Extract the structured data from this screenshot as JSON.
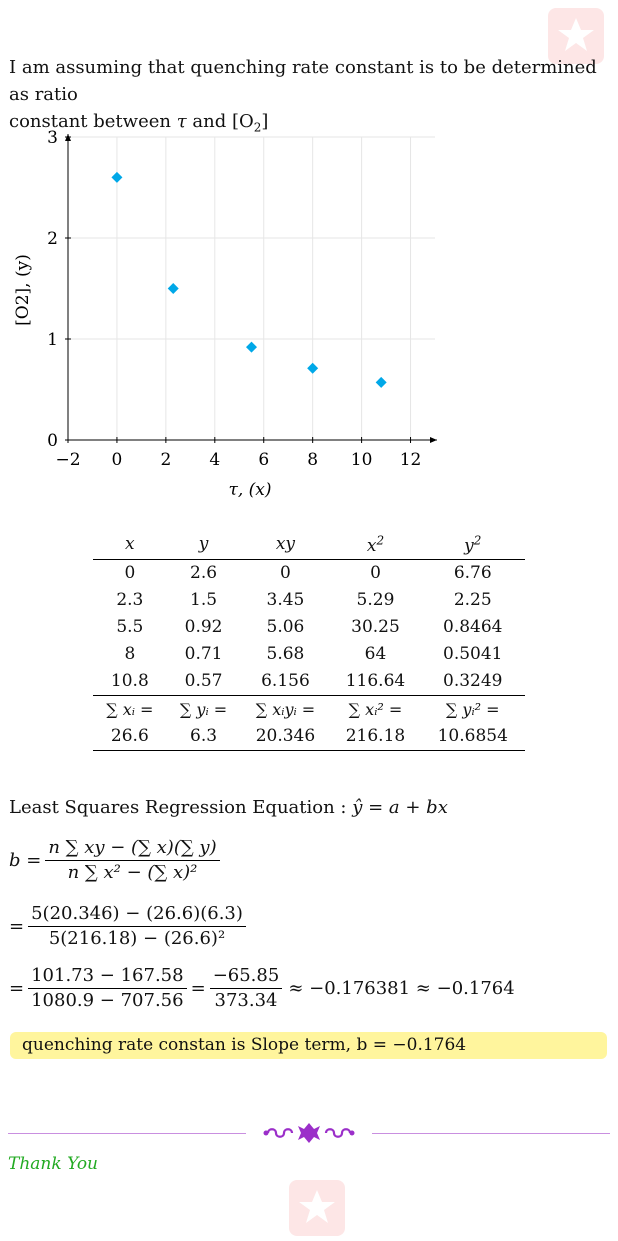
{
  "intro": {
    "line1": "I am assuming that quenching rate constant is to be determined as ratio",
    "line2_a": "constant between ",
    "tau": "τ",
    "line2_b": " and [O",
    "sub2": "2",
    "line2_c": "]"
  },
  "chart_data": {
    "type": "scatter",
    "xlabel": "τ, (x)",
    "ylabel": "[O2], (y)",
    "xlim": [
      -2,
      13
    ],
    "ylim": [
      0,
      3
    ],
    "x_ticks": [
      "−2",
      "0",
      "2",
      "4",
      "6",
      "8",
      "10",
      "12"
    ],
    "x_tick_values": [
      -2,
      0,
      2,
      4,
      6,
      8,
      10,
      12
    ],
    "y_ticks": [
      "0",
      "1",
      "2",
      "3"
    ],
    "y_tick_values": [
      0,
      1,
      2,
      3
    ],
    "grid": true,
    "marker": "diamond",
    "color": "#00a8e8",
    "x": [
      0,
      2.3,
      5.5,
      8,
      10.8
    ],
    "y": [
      2.6,
      1.5,
      0.92,
      0.71,
      0.57
    ]
  },
  "table": {
    "headers": [
      "x",
      "y",
      "xy",
      "x2",
      "y2"
    ],
    "rows": [
      [
        "0",
        "2.6",
        "0",
        "0",
        "6.76"
      ],
      [
        "2.3",
        "1.5",
        "3.45",
        "5.29",
        "2.25"
      ],
      [
        "5.5",
        "0.92",
        "5.06",
        "30.25",
        "0.8464"
      ],
      [
        "8",
        "0.71",
        "5.68",
        "64",
        "0.5041"
      ],
      [
        "10.8",
        "0.57",
        "6.156",
        "116.64",
        "0.3249"
      ]
    ],
    "sum_labels": [
      "∑ xᵢ =",
      "∑ yᵢ =",
      "∑ xᵢyᵢ =",
      "∑ xᵢ² =",
      "∑ yᵢ² ="
    ],
    "sums": [
      "26.6",
      "6.3",
      "20.346",
      "216.18",
      "10.6854"
    ]
  },
  "regression": {
    "title": "Least Squares Regression Equation : ",
    "equation": "ŷ = a + bx",
    "b_lhs": "b =",
    "b_num": "n ∑ xy − (∑ x)(∑ y)",
    "b_den": "n ∑ x² − (∑ x)²",
    "eq": "=",
    "sub_num": "5(20.346) − (26.6)(6.3)",
    "sub_den": "5(216.18) − (26.6)²",
    "calc_num1": "101.73 − 167.58",
    "calc_den1": "1080.9 − 707.56",
    "calc_num2": "−65.85",
    "calc_den2": "373.34",
    "approx": "≈ −0.176381 ≈ −0.1764"
  },
  "answer": "quenching rate constan is Slope term, b = −0.1764",
  "thanks": "Thank You"
}
